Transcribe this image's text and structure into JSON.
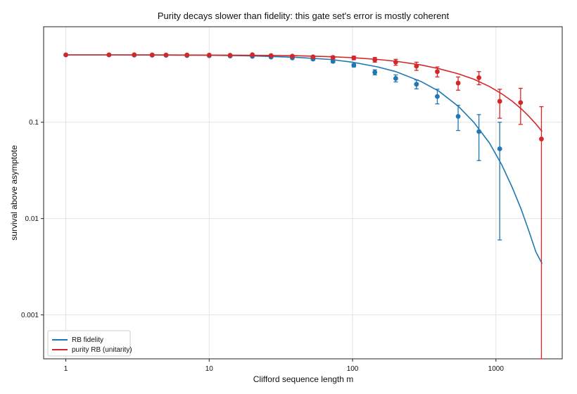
{
  "chart_data": {
    "type": "scatter",
    "title": "Purity decays slower than fidelity: this gate set's error is mostly coherent",
    "xlabel": "Clifford sequence length m",
    "ylabel": "survival above asymptote",
    "x_scale": "log",
    "y_scale": "log",
    "xlim": [
      0.7,
      2900
    ],
    "ylim": [
      0.00035,
      0.98
    ],
    "x_ticks": [
      1,
      10,
      100,
      1000
    ],
    "x_tick_labels": [
      "1",
      "10",
      "100",
      "1000"
    ],
    "y_ticks": [
      0.1,
      0.01,
      0.001
    ],
    "y_tick_labels": [
      "0.1",
      "0.01",
      "0.001"
    ],
    "grid": true,
    "legend_position": "bottom-left",
    "series": [
      {
        "name": "RB fidelity",
        "color": "#1f77b4",
        "x": [
          1,
          2,
          3,
          4,
          5,
          7,
          10,
          14,
          20,
          27,
          38,
          53,
          73,
          102,
          143,
          200,
          279,
          390,
          545,
          761,
          1063
        ],
        "y": [
          0.5,
          0.5,
          0.497,
          0.496,
          0.495,
          0.492,
          0.49,
          0.487,
          0.483,
          0.475,
          0.465,
          0.452,
          0.428,
          0.39,
          0.33,
          0.285,
          0.248,
          0.185,
          0.115,
          0.08,
          0.053
        ],
        "yerr_low": [
          0.5,
          0.5,
          0.49,
          0.49,
          0.488,
          0.486,
          0.484,
          0.48,
          0.476,
          0.468,
          0.455,
          0.44,
          0.415,
          0.375,
          0.31,
          0.262,
          0.222,
          0.155,
          0.082,
          0.04,
          0.006
        ],
        "yerr_high": [
          0.5,
          0.5,
          0.504,
          0.502,
          0.502,
          0.498,
          0.496,
          0.494,
          0.49,
          0.482,
          0.475,
          0.464,
          0.441,
          0.405,
          0.35,
          0.31,
          0.275,
          0.22,
          0.15,
          0.12,
          0.1
        ],
        "fit_x": [
          1,
          2,
          5,
          10,
          20,
          40,
          70,
          100,
          150,
          200,
          300,
          400,
          550,
          700,
          900,
          1100,
          1300,
          1500,
          1700,
          1900,
          2100
        ],
        "fit_y": [
          0.5,
          0.5,
          0.498,
          0.495,
          0.488,
          0.472,
          0.448,
          0.42,
          0.375,
          0.335,
          0.265,
          0.21,
          0.145,
          0.1,
          0.061,
          0.036,
          0.021,
          0.0125,
          0.0074,
          0.0045,
          0.0034
        ]
      },
      {
        "name": "purity RB (unitarity)",
        "color": "#d62728",
        "x": [
          1,
          2,
          3,
          4,
          5,
          7,
          10,
          14,
          20,
          27,
          38,
          53,
          73,
          102,
          143,
          200,
          279,
          390,
          545,
          761,
          1063,
          1486,
          2077
        ],
        "y": [
          0.5,
          0.5,
          0.502,
          0.5,
          0.499,
          0.499,
          0.498,
          0.496,
          0.502,
          0.492,
          0.485,
          0.477,
          0.47,
          0.465,
          0.445,
          0.42,
          0.382,
          0.335,
          0.255,
          0.29,
          0.165,
          0.16,
          0.067
        ],
        "yerr_low": [
          0.5,
          0.5,
          0.496,
          0.494,
          0.493,
          0.493,
          0.492,
          0.49,
          0.495,
          0.485,
          0.475,
          0.465,
          0.455,
          0.445,
          0.42,
          0.39,
          0.345,
          0.295,
          0.215,
          0.245,
          0.11,
          0.095,
          0.00035
        ],
        "yerr_high": [
          0.5,
          0.5,
          0.508,
          0.506,
          0.505,
          0.505,
          0.504,
          0.502,
          0.509,
          0.499,
          0.495,
          0.489,
          0.485,
          0.485,
          0.47,
          0.45,
          0.42,
          0.375,
          0.295,
          0.335,
          0.22,
          0.225,
          0.145
        ],
        "fit_x": [
          1,
          2,
          5,
          10,
          20,
          40,
          70,
          100,
          150,
          200,
          300,
          400,
          550,
          700,
          900,
          1100,
          1300,
          1500,
          1700,
          1900,
          2100
        ],
        "fit_y": [
          0.5,
          0.5,
          0.499,
          0.498,
          0.495,
          0.49,
          0.479,
          0.468,
          0.448,
          0.43,
          0.393,
          0.36,
          0.317,
          0.28,
          0.235,
          0.197,
          0.165,
          0.138,
          0.115,
          0.096,
          0.08
        ]
      }
    ]
  }
}
